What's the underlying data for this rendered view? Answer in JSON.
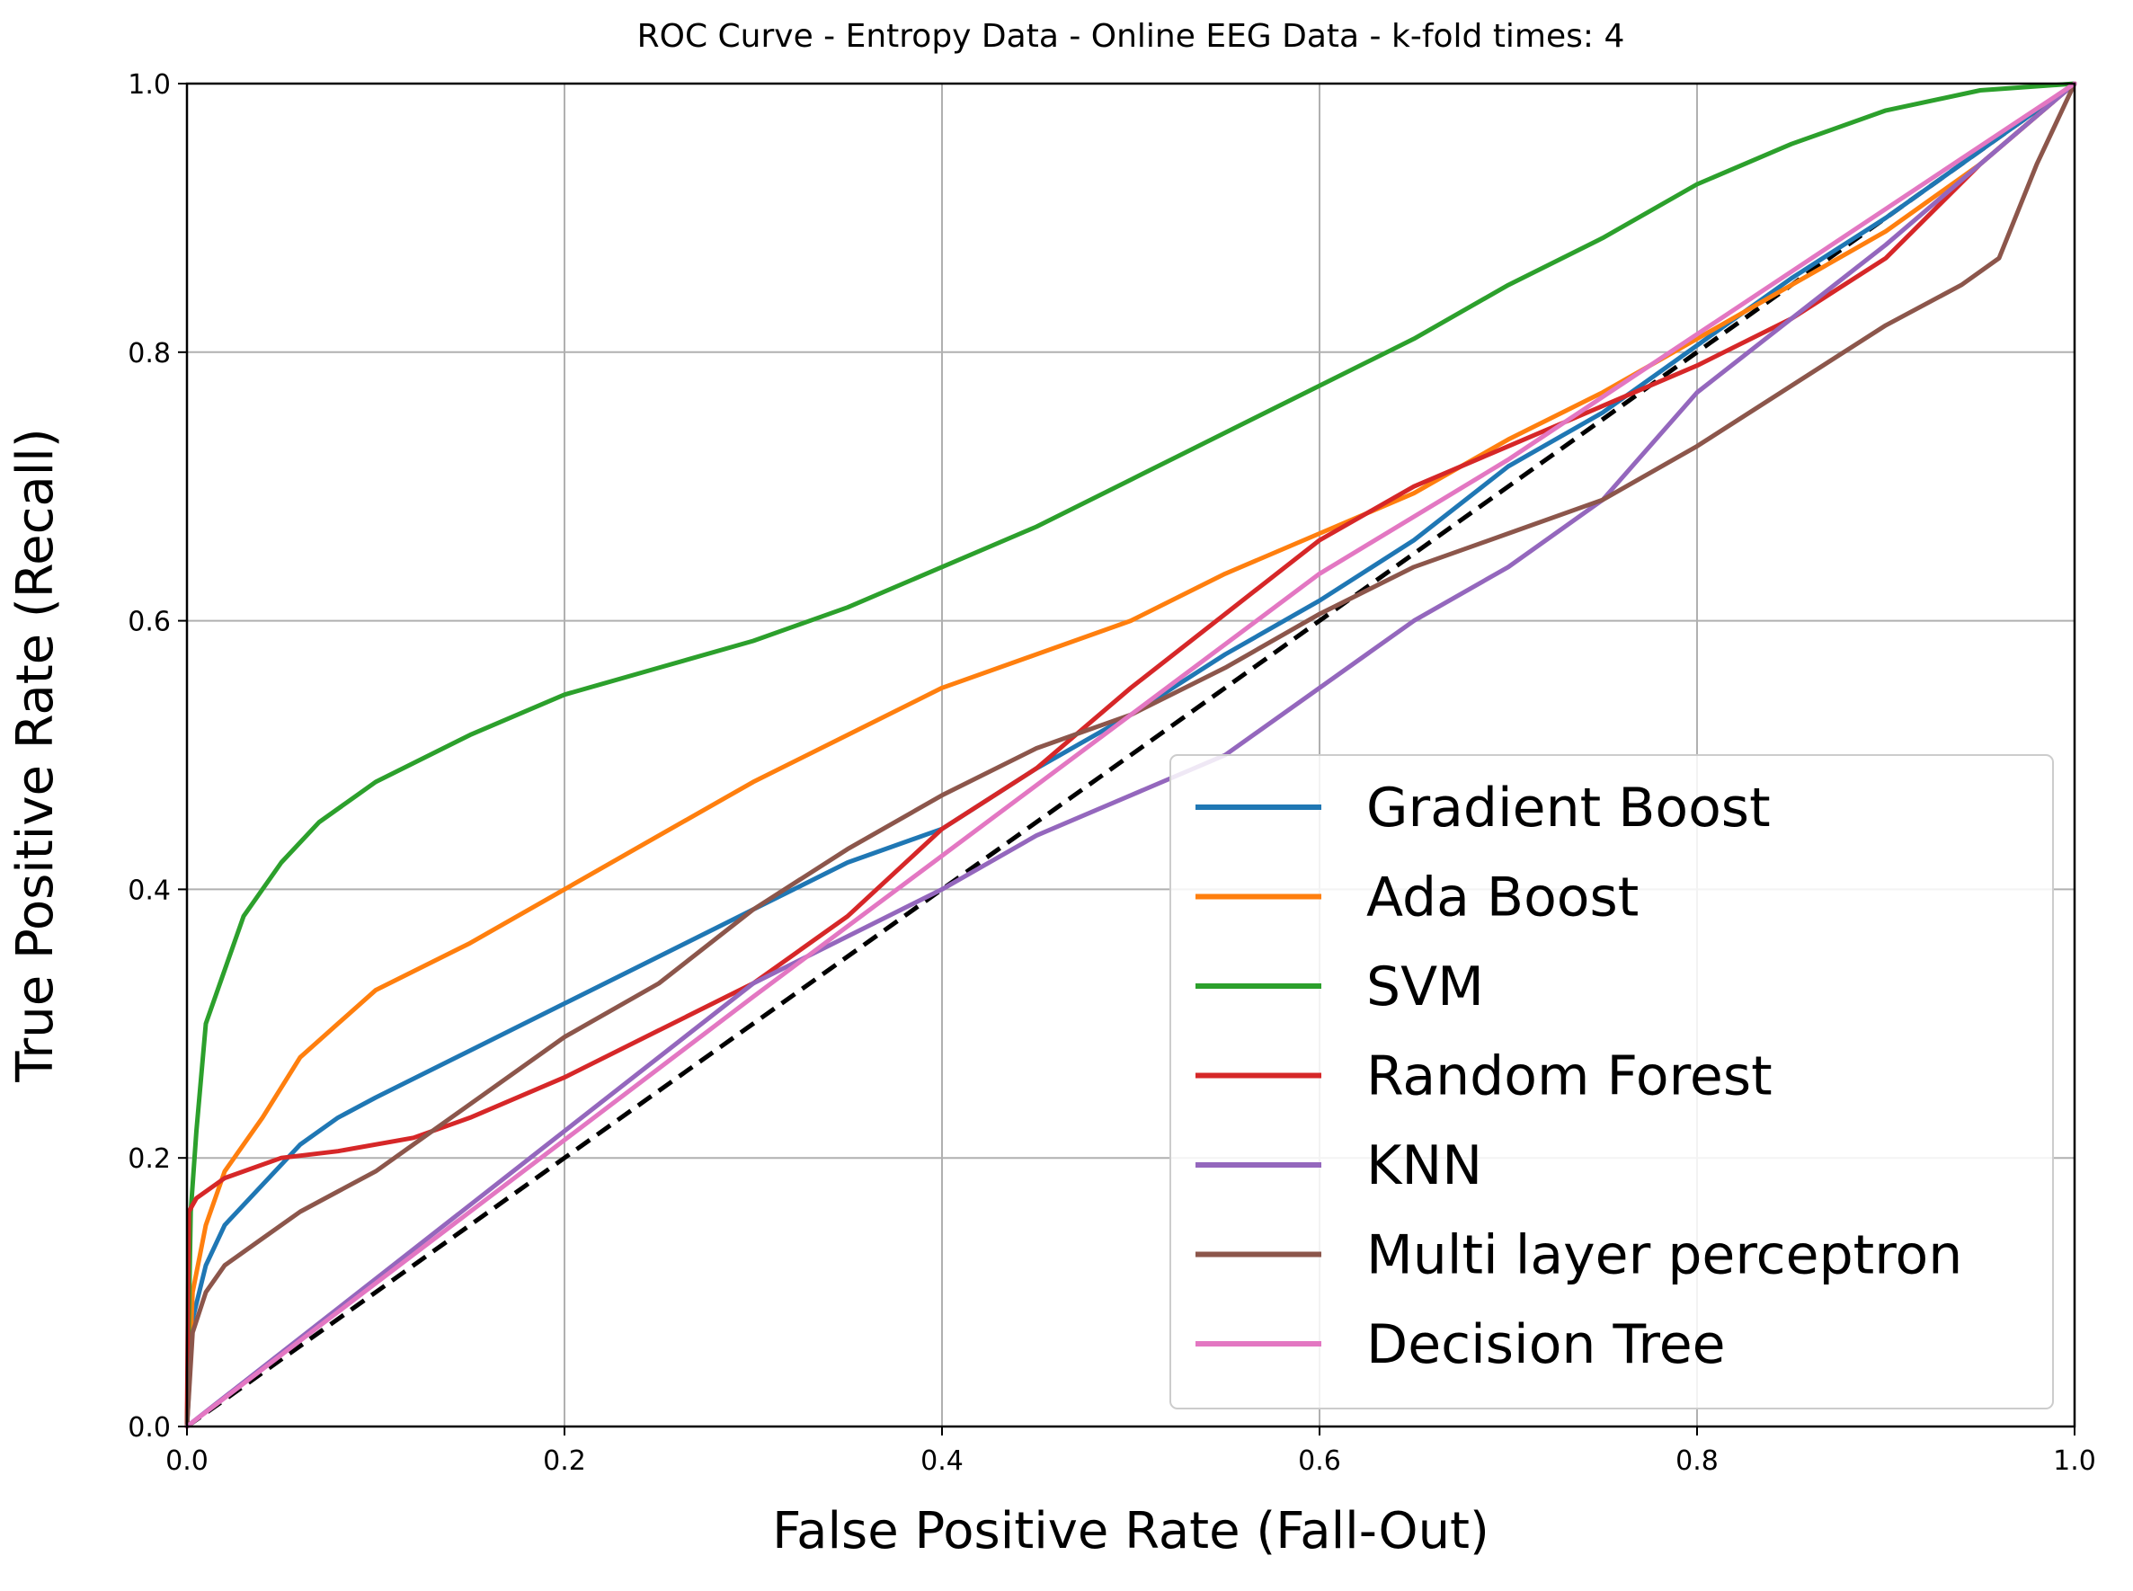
{
  "chart_data": {
    "type": "line",
    "title": "ROC Curve - Entropy Data - Online EEG Data - k-fold times: 4",
    "xlabel": "False Positive Rate (Fall-Out)",
    "ylabel": "True Positive Rate (Recall)",
    "xlim": [
      0,
      1
    ],
    "ylim": [
      0,
      1
    ],
    "xticks": [
      "0.0",
      "0.2",
      "0.4",
      "0.6",
      "0.8",
      "1.0"
    ],
    "yticks": [
      "0.0",
      "0.2",
      "0.4",
      "0.6",
      "0.8",
      "1.0"
    ],
    "grid": true,
    "legend_position": "lower-right",
    "diagonal": {
      "x": [
        0,
        1
      ],
      "y": [
        0,
        1
      ],
      "color": "#000000",
      "style": "dashed"
    },
    "series": [
      {
        "name": "Gradient Boost",
        "color": "#1f77b4",
        "x": [
          0,
          0.003,
          0.01,
          0.02,
          0.04,
          0.06,
          0.08,
          0.1,
          0.15,
          0.2,
          0.25,
          0.3,
          0.35,
          0.4,
          0.45,
          0.5,
          0.55,
          0.6,
          0.65,
          0.7,
          0.75,
          0.8,
          0.85,
          0.9,
          0.95,
          1.0
        ],
        "y": [
          0,
          0.08,
          0.12,
          0.15,
          0.18,
          0.21,
          0.23,
          0.245,
          0.28,
          0.315,
          0.35,
          0.385,
          0.42,
          0.445,
          0.49,
          0.53,
          0.575,
          0.615,
          0.66,
          0.715,
          0.755,
          0.805,
          0.855,
          0.9,
          0.95,
          1.0
        ]
      },
      {
        "name": "Ada Boost",
        "color": "#ff7f0e",
        "x": [
          0,
          0.003,
          0.01,
          0.02,
          0.04,
          0.06,
          0.08,
          0.1,
          0.15,
          0.2,
          0.25,
          0.3,
          0.35,
          0.4,
          0.45,
          0.5,
          0.55,
          0.6,
          0.65,
          0.7,
          0.75,
          0.8,
          0.85,
          0.9,
          0.95,
          1.0
        ],
        "y": [
          0,
          0.1,
          0.15,
          0.19,
          0.23,
          0.275,
          0.3,
          0.325,
          0.36,
          0.4,
          0.44,
          0.48,
          0.515,
          0.55,
          0.575,
          0.6,
          0.635,
          0.665,
          0.695,
          0.735,
          0.77,
          0.81,
          0.85,
          0.89,
          0.94,
          1.0
        ]
      },
      {
        "name": "SVM",
        "color": "#2ca02c",
        "x": [
          0,
          0.002,
          0.005,
          0.01,
          0.02,
          0.03,
          0.05,
          0.07,
          0.1,
          0.15,
          0.2,
          0.25,
          0.3,
          0.35,
          0.4,
          0.45,
          0.5,
          0.55,
          0.6,
          0.65,
          0.7,
          0.75,
          0.8,
          0.85,
          0.9,
          0.95,
          1.0
        ],
        "y": [
          0,
          0.16,
          0.22,
          0.3,
          0.34,
          0.38,
          0.42,
          0.45,
          0.48,
          0.515,
          0.545,
          0.565,
          0.585,
          0.61,
          0.64,
          0.67,
          0.705,
          0.74,
          0.775,
          0.81,
          0.85,
          0.885,
          0.925,
          0.955,
          0.98,
          0.995,
          1.0
        ]
      },
      {
        "name": "Random Forest",
        "color": "#d62728",
        "x": [
          0,
          0.001,
          0.005,
          0.02,
          0.05,
          0.08,
          0.12,
          0.15,
          0.2,
          0.25,
          0.3,
          0.35,
          0.4,
          0.45,
          0.5,
          0.55,
          0.6,
          0.65,
          0.7,
          0.75,
          0.8,
          0.85,
          0.9,
          0.95,
          1.0
        ],
        "y": [
          0,
          0.16,
          0.17,
          0.185,
          0.2,
          0.205,
          0.215,
          0.23,
          0.26,
          0.295,
          0.33,
          0.38,
          0.445,
          0.49,
          0.55,
          0.605,
          0.66,
          0.7,
          0.73,
          0.76,
          0.79,
          0.825,
          0.87,
          0.94,
          1.0
        ]
      },
      {
        "name": "KNN",
        "color": "#9467bd",
        "x": [
          0,
          0.1,
          0.2,
          0.3,
          0.4,
          0.45,
          0.5,
          0.55,
          0.6,
          0.65,
          0.7,
          0.75,
          0.8,
          0.9,
          1.0
        ],
        "y": [
          0,
          0.11,
          0.22,
          0.33,
          0.4,
          0.44,
          0.47,
          0.5,
          0.55,
          0.6,
          0.64,
          0.69,
          0.77,
          0.88,
          1.0
        ]
      },
      {
        "name": "Multi layer perceptron",
        "color": "#8c564b",
        "x": [
          0,
          0.003,
          0.01,
          0.02,
          0.04,
          0.06,
          0.08,
          0.1,
          0.15,
          0.2,
          0.25,
          0.3,
          0.35,
          0.4,
          0.45,
          0.5,
          0.55,
          0.6,
          0.65,
          0.7,
          0.75,
          0.8,
          0.85,
          0.9,
          0.94,
          0.96,
          0.98,
          1.0
        ],
        "y": [
          0,
          0.07,
          0.1,
          0.12,
          0.14,
          0.16,
          0.175,
          0.19,
          0.24,
          0.29,
          0.33,
          0.385,
          0.43,
          0.47,
          0.505,
          0.53,
          0.565,
          0.605,
          0.64,
          0.665,
          0.69,
          0.73,
          0.775,
          0.82,
          0.85,
          0.87,
          0.94,
          1.0
        ]
      },
      {
        "name": "Decision Tree",
        "color": "#e377c2",
        "x": [
          0,
          0.3,
          0.5,
          0.6,
          0.7,
          1.0
        ],
        "y": [
          0,
          0.32,
          0.53,
          0.635,
          0.72,
          1.0
        ]
      }
    ]
  }
}
